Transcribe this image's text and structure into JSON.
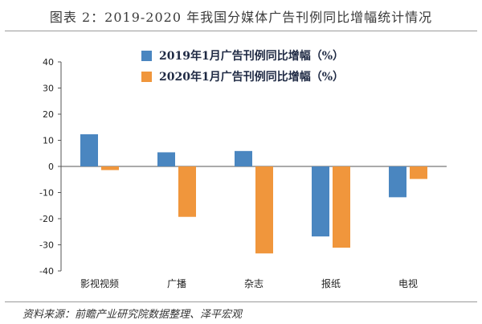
{
  "title": "图表 2：2019-2020 年我国分媒体广告刊例同比增幅统计情况",
  "source": "资料来源：前瞻产业研究院数据整理、泽平宏观",
  "colors": {
    "series_2019": "#4a86c0",
    "series_2020": "#f0963c"
  },
  "chart_data": {
    "type": "bar",
    "categories": [
      "影视视频",
      "广播",
      "杂志",
      "报纸",
      "电视"
    ],
    "series": [
      {
        "name": "2019年1月广告刊例同比增幅（%）",
        "values": [
          12.3,
          5.4,
          5.9,
          -26.8,
          -11.8
        ]
      },
      {
        "name": "2020年1月广告刊例同比增幅（%）",
        "values": [
          -1.4,
          -19.3,
          -33.3,
          -31.1,
          -4.8
        ]
      }
    ],
    "ylim": [
      -40,
      40
    ],
    "yticks": [
      40,
      30,
      20,
      10,
      0,
      -10,
      -20,
      -30,
      -40
    ],
    "legend": "top-center",
    "grid": false
  }
}
